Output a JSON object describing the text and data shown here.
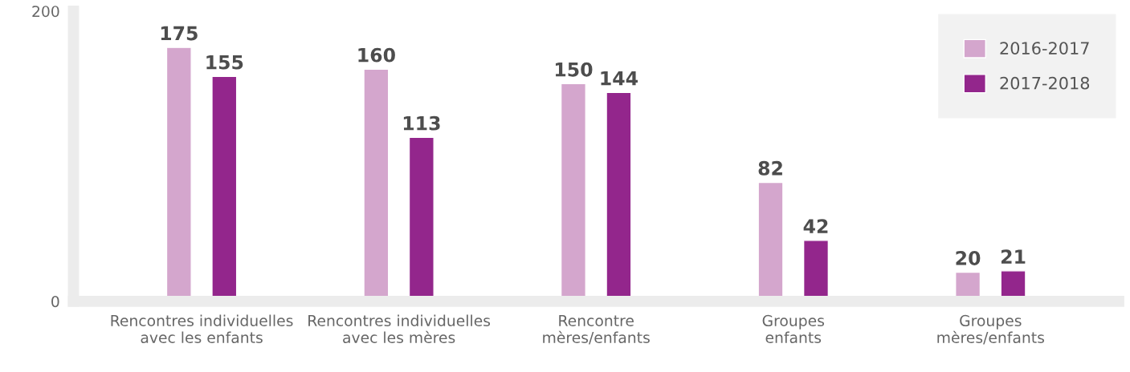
{
  "chart_data": {
    "type": "bar",
    "categories": [
      "Rencontres individuelles\navec les enfants",
      "Rencontres individuelles\navec les mères",
      "Rencontre\nmères/enfants",
      "Groupes\nenfants",
      "Groupes\nmères/enfants"
    ],
    "series": [
      {
        "name": "2016-2017",
        "color": "#d4a6cd",
        "values": [
          175,
          160,
          150,
          82,
          20
        ]
      },
      {
        "name": "2017-2018",
        "color": "#93268c",
        "values": [
          155,
          113,
          144,
          42,
          21
        ]
      }
    ],
    "ylim": [
      0,
      200
    ],
    "yticks": [
      0,
      200
    ],
    "grid": false,
    "legend": "top right",
    "data_labels": true
  }
}
